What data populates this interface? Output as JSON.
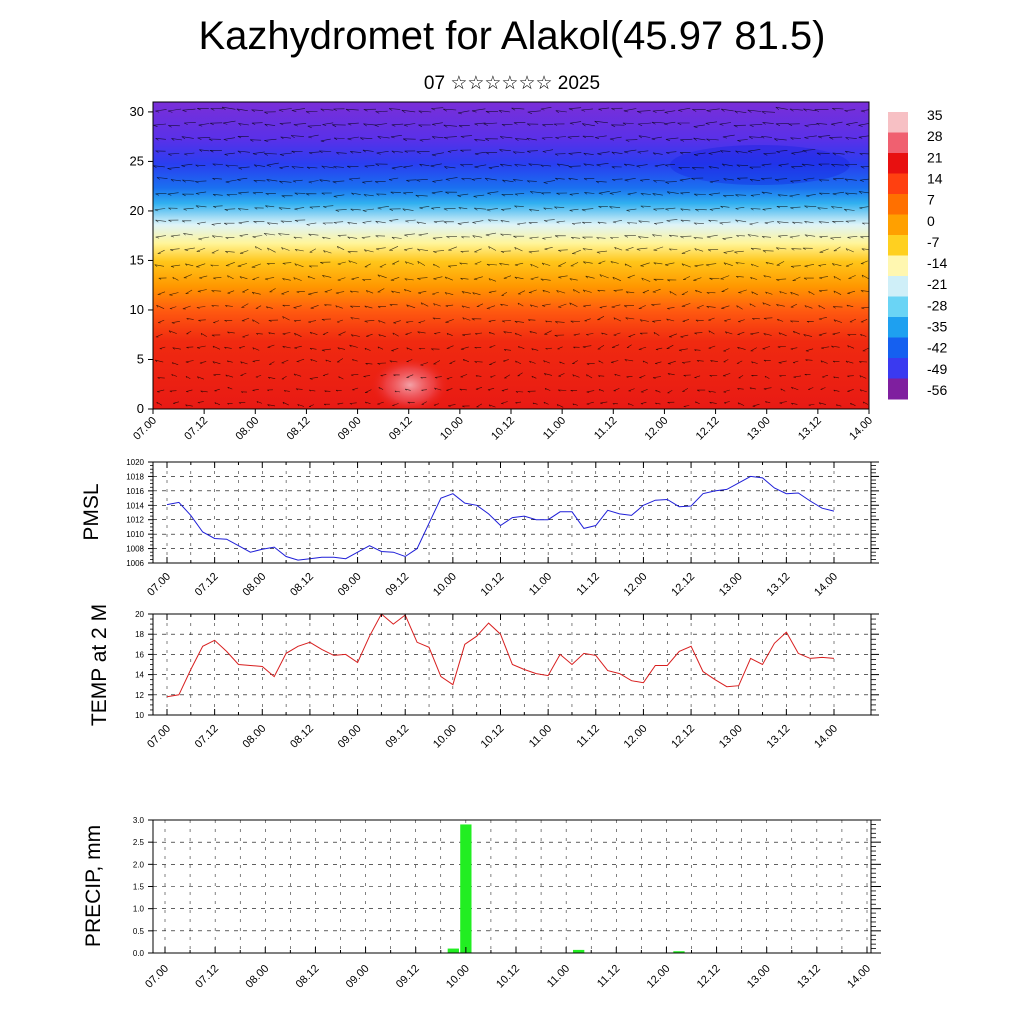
{
  "page": {
    "title": "Kazhydromet for Alakol(45.97 81.5)",
    "subtitle": "07 ☆☆☆☆☆☆ 2025"
  },
  "chart_data": [
    {
      "id": "cross-section",
      "type": "heatmap",
      "title": "",
      "xlabel": "",
      "ylabel": "",
      "x_tick_labels": [
        "07.00",
        "07.12",
        "08.00",
        "08.12",
        "09.00",
        "09.12",
        "10.00",
        "10.12",
        "11.00",
        "11.12",
        "12.00",
        "12.12",
        "13.00",
        "13.12",
        "14.00"
      ],
      "y_ticks": [
        0,
        5,
        10,
        15,
        20,
        25,
        30
      ],
      "ylim": [
        0,
        31
      ],
      "colorbar": {
        "labels": [
          "35",
          "28",
          "21",
          "14",
          "7",
          "0",
          "-7",
          "-14",
          "-21",
          "-28",
          "-35",
          "-42",
          "-49",
          "-56"
        ],
        "colors": [
          "#7f1f9f",
          "#3a3af0",
          "#1560f0",
          "#1ea0f0",
          "#6ad4f5",
          "#cfeff8",
          "#fff7b0",
          "#ffd020",
          "#ffa000",
          "#ff7000",
          "#ff4010",
          "#e81010",
          "#f06070",
          "#f7c0c4"
        ]
      },
      "overlay": "wind-vectors"
    },
    {
      "id": "pmsl",
      "type": "line",
      "ylabel": "PMSL",
      "ylim": [
        1006,
        1020
      ],
      "y_ticks": [
        1006,
        1008,
        1010,
        1012,
        1014,
        1016,
        1018,
        1020
      ],
      "x_tick_labels": [
        "07.00",
        "07.12",
        "08.00",
        "08.12",
        "09.00",
        "09.12",
        "10.00",
        "10.12",
        "11.00",
        "11.12",
        "12.00",
        "12.12",
        "13.00",
        "13.12",
        "14.00"
      ],
      "color": "#1f1fd8",
      "x": [
        0,
        3,
        6,
        9,
        12,
        15,
        18,
        21,
        24,
        27,
        30,
        33,
        36,
        39,
        42,
        45,
        48,
        51,
        54,
        57,
        60,
        63,
        66,
        69,
        72,
        75,
        78,
        81,
        84,
        87,
        90,
        93,
        96,
        99,
        102,
        105,
        108,
        111,
        114,
        117,
        120,
        123,
        126,
        129,
        132,
        135,
        138,
        141,
        144,
        147,
        150,
        153,
        156,
        159,
        162,
        165,
        168
      ],
      "values": [
        1014.1,
        1014.4,
        1012.6,
        1010.3,
        1009.4,
        1009.3,
        1008.4,
        1007.5,
        1007.9,
        1008.2,
        1006.9,
        1006.4,
        1006.6,
        1006.8,
        1006.8,
        1006.6,
        1007.5,
        1008.4,
        1007.6,
        1007.5,
        1006.9,
        1008.0,
        1011.5,
        1015.0,
        1015.6,
        1014.3,
        1014.0,
        1012.8,
        1011.2,
        1012.3,
        1012.5,
        1012.0,
        1012.0,
        1013.1,
        1013.1,
        1010.8,
        1011.2,
        1013.3,
        1012.8,
        1012.6,
        1014.0,
        1014.7,
        1014.8,
        1013.8,
        1013.9,
        1015.6,
        1016.0,
        1016.2,
        1017.1,
        1018.0,
        1017.8,
        1016.4,
        1015.6,
        1015.7,
        1014.6,
        1013.6,
        1013.2
      ]
    },
    {
      "id": "temp2m",
      "type": "line",
      "ylabel": "TEMP at 2 M",
      "ylim": [
        10,
        20
      ],
      "y_ticks": [
        10,
        12,
        14,
        16,
        18,
        20
      ],
      "x_tick_labels": [
        "07.00",
        "07.12",
        "08.00",
        "08.12",
        "09.00",
        "09.12",
        "10.00",
        "10.12",
        "11.00",
        "11.12",
        "12.00",
        "12.12",
        "13.00",
        "13.12",
        "14.00"
      ],
      "color": "#d81f1f",
      "x": [
        0,
        3,
        6,
        9,
        12,
        15,
        18,
        21,
        24,
        27,
        30,
        33,
        36,
        39,
        42,
        45,
        48,
        51,
        54,
        57,
        60,
        63,
        66,
        69,
        72,
        75,
        78,
        81,
        84,
        87,
        90,
        93,
        96,
        99,
        102,
        105,
        108,
        111,
        114,
        117,
        120,
        123,
        126,
        129,
        132,
        135,
        138,
        141,
        144,
        147,
        150,
        153,
        156,
        159,
        162,
        165,
        168
      ],
      "values": [
        11.8,
        12.0,
        14.5,
        16.8,
        17.4,
        16.3,
        15.0,
        14.9,
        14.8,
        13.8,
        16.1,
        16.8,
        17.2,
        16.5,
        15.9,
        16.0,
        15.2,
        17.8,
        20.0,
        19.0,
        19.9,
        17.2,
        16.7,
        13.8,
        13.0,
        17.0,
        17.8,
        19.1,
        18.0,
        15.0,
        14.5,
        14.1,
        13.9,
        16.0,
        15.0,
        16.1,
        15.9,
        14.4,
        14.1,
        13.4,
        13.2,
        14.9,
        14.9,
        16.3,
        16.8,
        14.3,
        13.5,
        12.8,
        12.9,
        15.6,
        15.0,
        17.1,
        18.2,
        16.1,
        15.6,
        15.7,
        15.6
      ]
    },
    {
      "id": "precip",
      "type": "bar",
      "ylabel": "PRECIP, mm",
      "ylim": [
        0,
        3.0
      ],
      "y_ticks": [
        "0.0",
        "0.5",
        "1.0",
        "1.5",
        "2.0",
        "2.5",
        "3.0"
      ],
      "x_tick_labels": [
        "07.00",
        "07.12",
        "08.00",
        "08.12",
        "09.00",
        "09.12",
        "10.00",
        "10.12",
        "11.00",
        "11.12",
        "12.00",
        "12.12",
        "13.00",
        "13.12",
        "14.00"
      ],
      "color": "#22ee22",
      "bars": [
        {
          "x": 69,
          "value": 0.1
        },
        {
          "x": 72,
          "value": 2.9
        },
        {
          "x": 99,
          "value": 0.07
        },
        {
          "x": 123,
          "value": 0.04
        }
      ]
    }
  ]
}
